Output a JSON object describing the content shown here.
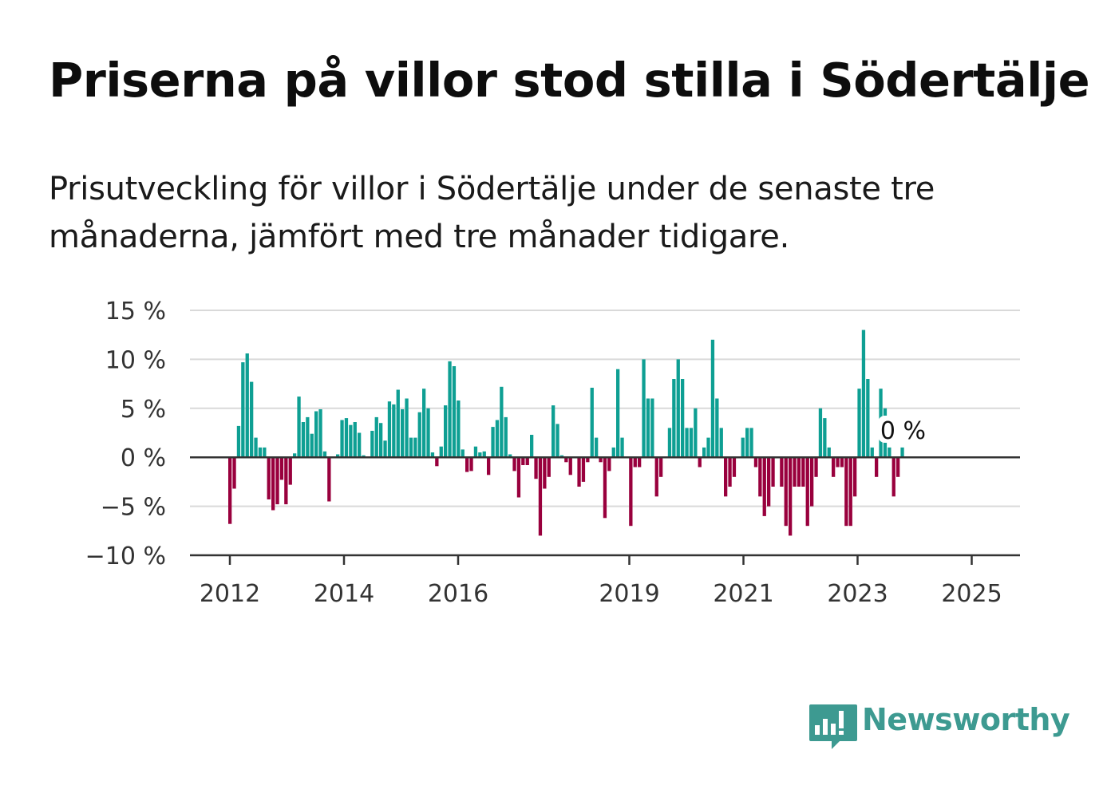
{
  "title": "Priserna på villor stod stilla i Södertälje",
  "subtitle": "Prisutveckling för villor i Södertälje under de senaste tre månaderna, jämfört med tre månader tidigare.",
  "brand": {
    "name": "Newsworthy",
    "logo_icon": "newsworthy-chart-bubble-icon",
    "color": "#3d9a91"
  },
  "colors": {
    "positive": "#0e9f93",
    "negative": "#99003d",
    "grid": "#d9d9d9",
    "axis": "#333333"
  },
  "chart_data": {
    "type": "bar",
    "title": "Priserna på villor stod stilla i Södertälje",
    "y_ticks": [
      "15 %",
      "10 %",
      "5 %",
      "0 %",
      "−5 %",
      "−10 %"
    ],
    "ylim": [
      -10,
      15
    ],
    "x_ticks": [
      "2012",
      "2014",
      "2016",
      "2019",
      "2021",
      "2023",
      "2025"
    ],
    "last_label": "0 %",
    "grid": true,
    "values": [
      -6.8,
      -3.2,
      3.2,
      9.7,
      10.6,
      7.7,
      2.0,
      1.0,
      1.0,
      -4.3,
      -5.4,
      -4.8,
      -2.3,
      -4.8,
      -2.8,
      0.4,
      6.2,
      3.6,
      4.1,
      2.4,
      4.7,
      4.9,
      0.6,
      -4.5,
      0.1,
      0.3,
      3.8,
      4.0,
      3.3,
      3.6,
      2.5,
      0.2,
      0.0,
      2.7,
      4.1,
      3.5,
      1.7,
      5.7,
      5.4,
      6.9,
      4.9,
      6.0,
      2.0,
      2.0,
      4.6,
      7.0,
      5.0,
      0.5,
      -0.9,
      1.1,
      5.3,
      9.8,
      9.3,
      5.8,
      0.8,
      -1.5,
      -1.4,
      1.1,
      0.5,
      0.6,
      -1.8,
      3.1,
      3.8,
      7.2,
      4.1,
      0.3,
      -1.4,
      -4.1,
      -0.8,
      -0.8,
      2.3,
      -2.2,
      -8.0,
      -3.2,
      -2.0,
      5.3,
      3.4,
      0.2,
      -0.5,
      -1.8,
      0.0,
      -3.0,
      -2.5,
      -0.5,
      7.1,
      2.0,
      -0.5,
      -6.2,
      -1.4,
      1.0,
      9.0,
      2.0,
      0.0,
      -7.0,
      -1.0,
      -1.0,
      10.0,
      6.0,
      6.0,
      -4.0,
      -2.0,
      0.0,
      3.0,
      8.0,
      10.0,
      8.0,
      3.0,
      3.0,
      5.0,
      -1.0,
      1.0,
      2.0,
      12.0,
      6.0,
      3.0,
      -4.0,
      -3.0,
      -2.0,
      0.0,
      2.0,
      3.0,
      3.0,
      -1.0,
      -4.0,
      -6.0,
      -5.0,
      -3.0,
      0.0,
      -3.0,
      -7.0,
      -8.0,
      -3.0,
      -3.0,
      -3.0,
      -7.0,
      -5.0,
      -2.0,
      5.0,
      4.0,
      1.0,
      -2.0,
      -1.0,
      -1.0,
      -7.0,
      -7.0,
      -4.0,
      7.0,
      13.0,
      8.0,
      1.0,
      -2.0,
      7.0,
      5.0,
      1.0,
      -4.0,
      -2.0,
      1.0
    ]
  }
}
